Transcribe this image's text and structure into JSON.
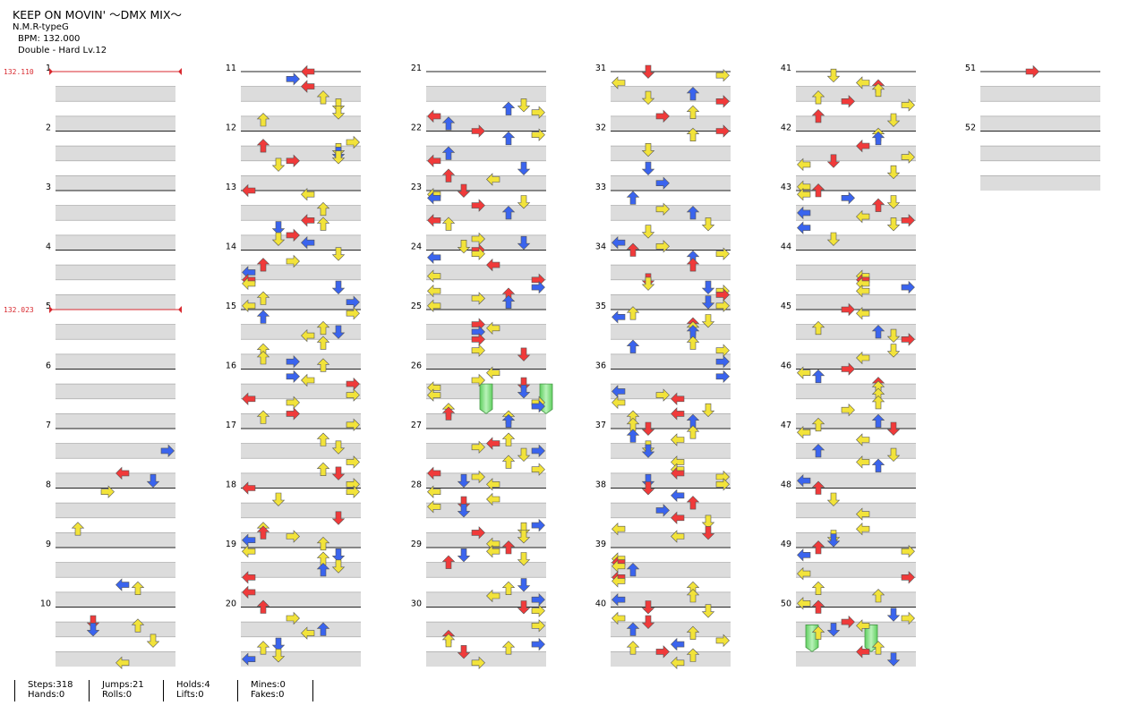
{
  "song": {
    "title": "KEEP ON MOVIN' ～DMX MIX～",
    "artist": "N.M.R-typeG",
    "bpm_label": "BPM: 132.000",
    "difficulty_label": "Double - Hard  Lv.12"
  },
  "bpm_changes": [
    {
      "measure": 1,
      "label": "132.110"
    },
    {
      "measure": 5,
      "label": "132.023"
    }
  ],
  "measure_count": 52,
  "colors": {
    "red": "#f03a3a",
    "blue": "#3a64ee",
    "yellow": "#f2e33a",
    "hold": "#79dc79",
    "band": "#dcdcdc"
  },
  "arrow_icon_names": [
    "left-arrow-icon",
    "down-arrow-icon",
    "up-arrow-icon",
    "right-arrow-icon"
  ],
  "stats": [
    {
      "top": "Steps:318",
      "bottom": "Hands:0"
    },
    {
      "top": "Jumps:21",
      "bottom": "Rolls:0"
    },
    {
      "top": "Holds:4",
      "bottom": "Lifts:0"
    },
    {
      "top": "Mines:0",
      "bottom": "Fakes:0"
    }
  ]
}
